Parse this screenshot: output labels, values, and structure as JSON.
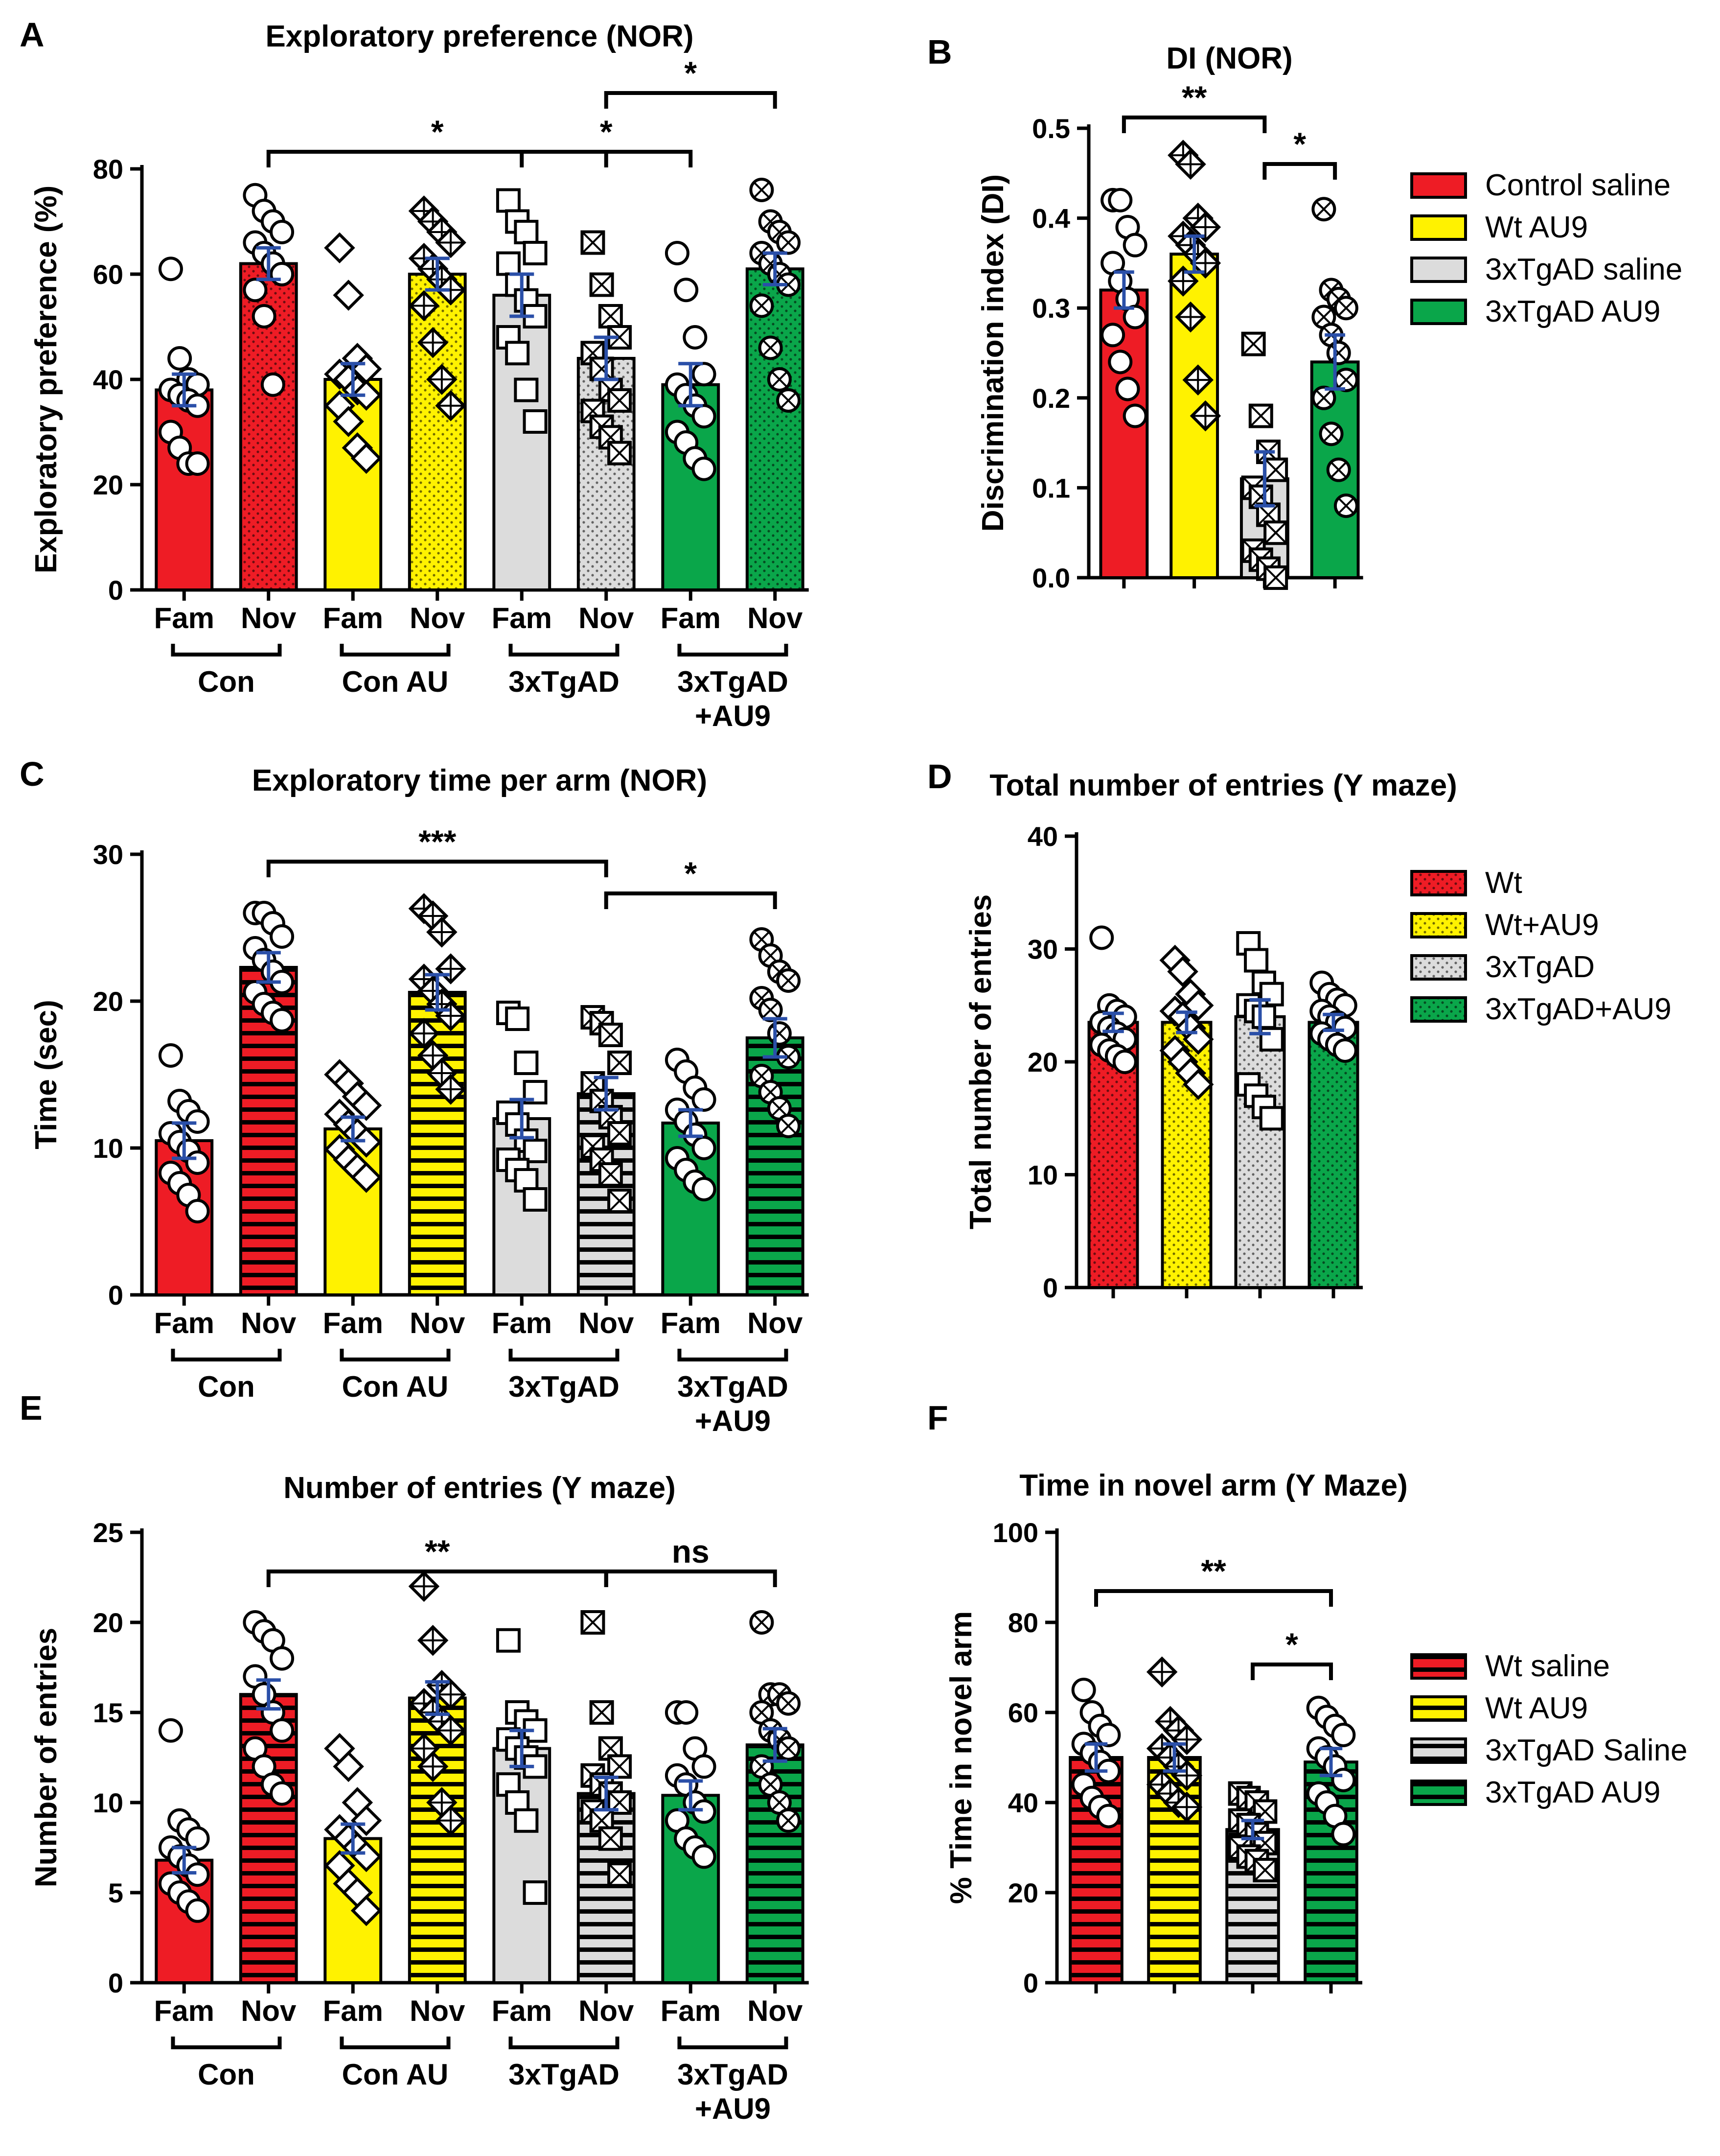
{
  "colors": {
    "red": "#ee1c25",
    "yellow": "#fff200",
    "gray": "#dcdcdc",
    "green": "#0aa64a",
    "error_bar": "#2a4fa8"
  },
  "chart_data": [
    {
      "panel": "A",
      "type": "bar",
      "title": "Exploratory preference (NOR)",
      "ylabel": "Exploratory preference (%)",
      "xlabel": "",
      "ylim": [
        0,
        80
      ],
      "yticks": [
        0,
        20,
        40,
        60,
        80
      ],
      "categories": [
        "Fam",
        "Nov",
        "Fam",
        "Nov",
        "Fam",
        "Nov",
        "Fam",
        "Nov"
      ],
      "groups": [
        {
          "label": "Con",
          "span": [
            0,
            1
          ]
        },
        {
          "label": "Con AU",
          "span": [
            2,
            3
          ]
        },
        {
          "label": "3xTgAD",
          "span": [
            4,
            5
          ]
        },
        {
          "label": "3xTgAD\n+AU9",
          "span": [
            6,
            7
          ]
        }
      ],
      "values": [
        38,
        62,
        40,
        60,
        56,
        44,
        39,
        61
      ],
      "sem": [
        3,
        3,
        3,
        3,
        4,
        4,
        4,
        3
      ],
      "bar_colors": [
        "red",
        "red",
        "yellow",
        "yellow",
        "gray",
        "gray",
        "green",
        "green"
      ],
      "patterns": [
        "solid",
        "dots",
        "solid",
        "dots",
        "solid",
        "dots",
        "solid",
        "dots"
      ],
      "markers": [
        "circle",
        "circle",
        "diamond",
        "diamond-plus",
        "square",
        "square-x",
        "circle",
        "circle-x"
      ],
      "points": [
        [
          61,
          44,
          40,
          39,
          38,
          37,
          36,
          35,
          30,
          27,
          24,
          24
        ],
        [
          75,
          72,
          70,
          68,
          66,
          64,
          62,
          60,
          57,
          52,
          39,
          60
        ],
        [
          65,
          56,
          44,
          42,
          41,
          40,
          38,
          37,
          35,
          32,
          27,
          25
        ],
        [
          72,
          70,
          68,
          66,
          63,
          61,
          59,
          57,
          54,
          47,
          40,
          35
        ],
        [
          74,
          70,
          68,
          64,
          62,
          58,
          55,
          52,
          48,
          45,
          38,
          32
        ],
        [
          66,
          58,
          52,
          48,
          45,
          42,
          38,
          36,
          34,
          31,
          29,
          26
        ],
        [
          64,
          57,
          48,
          41,
          39,
          37,
          35,
          33,
          30,
          28,
          25,
          23
        ],
        [
          76,
          70,
          68,
          66,
          64,
          62,
          60,
          58,
          54,
          46,
          40,
          36
        ]
      ],
      "annotations": [
        {
          "from": 1,
          "to": 5,
          "text": "*"
        },
        {
          "from": 4,
          "to": 6,
          "text": "*"
        },
        {
          "from": 5,
          "to": 7,
          "text": "*"
        }
      ]
    },
    {
      "panel": "B",
      "type": "bar",
      "title": "DI (NOR)",
      "ylabel": "Discrimination index (DI)",
      "xlabel": "",
      "ylim": [
        0,
        0.5
      ],
      "yticks": [
        0.0,
        0.1,
        0.2,
        0.3,
        0.4,
        0.5
      ],
      "categories": [
        "Control saline",
        "Wt AU9",
        "3xTgAD saline",
        "3xTgAD AU9"
      ],
      "values": [
        0.32,
        0.36,
        0.11,
        0.24
      ],
      "sem": [
        0.02,
        0.02,
        0.03,
        0.03
      ],
      "bar_colors": [
        "red",
        "yellow",
        "gray",
        "green"
      ],
      "patterns": [
        "solid",
        "solid",
        "solid",
        "solid"
      ],
      "markers": [
        "circle",
        "diamond-plus",
        "square-x",
        "circle-x"
      ],
      "points": [
        [
          0.42,
          0.42,
          0.39,
          0.37,
          0.35,
          0.33,
          0.31,
          0.29,
          0.27,
          0.24,
          0.21,
          0.18
        ],
        [
          0.47,
          0.46,
          0.4,
          0.39,
          0.38,
          0.37,
          0.36,
          0.35,
          0.33,
          0.29,
          0.22,
          0.18
        ],
        [
          0.26,
          0.18,
          0.14,
          0.12,
          0.1,
          0.09,
          0.07,
          0.05,
          0.03,
          0.02,
          0.01,
          0.0
        ],
        [
          0.41,
          0.32,
          0.31,
          0.3,
          0.29,
          0.27,
          0.25,
          0.22,
          0.2,
          0.16,
          0.12,
          0.08
        ]
      ],
      "annotations": [
        {
          "from": 0,
          "to": 2,
          "text": "**"
        },
        {
          "from": 2,
          "to": 3,
          "text": "*"
        }
      ],
      "legend": [
        "Control saline",
        "Wt AU9",
        "3xTgAD saline",
        "3xTgAD AU9"
      ],
      "legend_position": "right"
    },
    {
      "panel": "C",
      "type": "bar",
      "title": "Exploratory time per arm (NOR)",
      "ylabel": "Time (sec)",
      "xlabel": "",
      "ylim": [
        0,
        30
      ],
      "yticks": [
        0,
        10,
        20,
        30
      ],
      "categories": [
        "Fam",
        "Nov",
        "Fam",
        "Nov",
        "Fam",
        "Nov",
        "Fam",
        "Nov"
      ],
      "groups": [
        {
          "label": "Con",
          "span": [
            0,
            1
          ]
        },
        {
          "label": "Con AU",
          "span": [
            2,
            3
          ]
        },
        {
          "label": "3xTgAD",
          "span": [
            4,
            5
          ]
        },
        {
          "label": "3xTgAD\n+AU9",
          "span": [
            6,
            7
          ]
        }
      ],
      "values": [
        10.5,
        22.3,
        11.3,
        20.6,
        12.0,
        13.7,
        11.7,
        17.5
      ],
      "sem": [
        1.2,
        1.0,
        0.8,
        1.2,
        1.3,
        1.1,
        0.9,
        1.3
      ],
      "bar_colors": [
        "red",
        "red",
        "yellow",
        "yellow",
        "gray",
        "gray",
        "green",
        "green"
      ],
      "patterns": [
        "solid",
        "hstripes",
        "solid",
        "hstripes",
        "solid",
        "hstripes",
        "solid",
        "hstripes"
      ],
      "markers": [
        "circle",
        "circle",
        "diamond",
        "diamond-plus",
        "square",
        "square-x",
        "circle",
        "circle-x"
      ],
      "points": [
        [
          16.3,
          13.2,
          12.5,
          11.8,
          11.0,
          10.4,
          9.8,
          9.0,
          8.3,
          7.6,
          6.8,
          5.7
        ],
        [
          26.0,
          26.0,
          25.3,
          24.4,
          23.6,
          22.8,
          22.0,
          21.3,
          20.6,
          19.8,
          19.2,
          18.7
        ],
        [
          15.0,
          14.4,
          13.5,
          12.9,
          12.3,
          11.6,
          11.0,
          10.4,
          9.9,
          9.2,
          8.6,
          8.0
        ],
        [
          26.3,
          25.8,
          24.7,
          22.2,
          21.5,
          20.7,
          19.8,
          19.0,
          17.8,
          16.3,
          15.1,
          14.0
        ],
        [
          19.2,
          18.8,
          15.8,
          13.8,
          12.4,
          11.6,
          10.5,
          9.8,
          9.2,
          8.5,
          7.8,
          6.5
        ],
        [
          18.9,
          18.5,
          17.7,
          15.8,
          14.4,
          13.2,
          12.1,
          11.0,
          10.1,
          9.2,
          8.2,
          6.4
        ],
        [
          16.0,
          15.2,
          14.1,
          13.3,
          12.6,
          11.8,
          10.9,
          10.0,
          9.3,
          8.5,
          7.7,
          7.2
        ],
        [
          24.2,
          23.1,
          22.0,
          21.4,
          20.2,
          19.4,
          17.8,
          16.2,
          14.9,
          13.8,
          12.7,
          11.5
        ]
      ],
      "annotations": [
        {
          "from": 1,
          "to": 5,
          "text": "***"
        },
        {
          "from": 5,
          "to": 7,
          "text": "*"
        }
      ]
    },
    {
      "panel": "D",
      "type": "bar",
      "title": "Total number of entries (Y maze)",
      "ylabel": "Total number of entries",
      "xlabel": "",
      "ylim": [
        0,
        40
      ],
      "yticks": [
        0,
        10,
        20,
        30,
        40
      ],
      "categories": [
        "Wt",
        "Wt+AU9",
        "3xTgAD",
        "3xTgAD+AU9"
      ],
      "values": [
        23.5,
        23.5,
        24.0,
        23.5
      ],
      "sem": [
        0.8,
        0.9,
        1.5,
        0.7
      ],
      "bar_colors": [
        "red",
        "yellow",
        "gray",
        "green"
      ],
      "patterns": [
        "dots",
        "dots",
        "dots",
        "dots"
      ],
      "markers": [
        "circle",
        "diamond",
        "square",
        "circle"
      ],
      "points": [
        [
          31,
          25,
          24.5,
          24,
          23.5,
          23,
          22.5,
          22,
          21.5,
          21,
          20.5,
          20
        ],
        [
          29,
          28,
          26,
          25,
          24.5,
          24,
          23,
          22,
          21,
          20,
          19,
          18
        ],
        [
          30.5,
          29,
          27,
          26,
          25,
          24.5,
          24,
          22,
          18,
          17,
          16,
          15
        ],
        [
          27,
          26,
          25.5,
          25,
          24.5,
          24,
          23.5,
          23,
          22.5,
          22,
          21.5,
          21
        ]
      ],
      "annotations": [],
      "legend": [
        "Wt",
        "Wt+AU9",
        "3xTgAD",
        "3xTgAD+AU9"
      ],
      "legend_position": "right"
    },
    {
      "panel": "E",
      "type": "bar",
      "title": "Number of entries (Y maze)",
      "ylabel": "Number of entries",
      "xlabel": "",
      "ylim": [
        0,
        25
      ],
      "yticks": [
        0,
        5,
        10,
        15,
        20,
        25
      ],
      "categories": [
        "Fam",
        "Nov",
        "Fam",
        "Nov",
        "Fam",
        "Nov",
        "Fam",
        "Nov"
      ],
      "groups": [
        {
          "label": "Con",
          "span": [
            0,
            1
          ]
        },
        {
          "label": "Con AU",
          "span": [
            2,
            3
          ]
        },
        {
          "label": "3xTgAD",
          "span": [
            4,
            5
          ]
        },
        {
          "label": "3xTgAD\n+AU9",
          "span": [
            6,
            7
          ]
        }
      ],
      "values": [
        6.8,
        16.0,
        8.0,
        15.8,
        13.0,
        10.5,
        10.4,
        13.2
      ],
      "sem": [
        0.7,
        0.8,
        0.8,
        0.9,
        1.0,
        0.9,
        0.8,
        0.9
      ],
      "bar_colors": [
        "red",
        "red",
        "yellow",
        "yellow",
        "gray",
        "gray",
        "green",
        "green"
      ],
      "patterns": [
        "solid",
        "hstripes",
        "solid",
        "hstripes",
        "solid",
        "hstripes",
        "solid",
        "hstripes"
      ],
      "markers": [
        "circle",
        "circle",
        "diamond",
        "diamond-plus",
        "square",
        "square-x",
        "circle",
        "circle-x"
      ],
      "points": [
        [
          14,
          9,
          8.5,
          8,
          7.5,
          7,
          6.5,
          6,
          5.5,
          5,
          4.5,
          4
        ],
        [
          20,
          19.5,
          19,
          18,
          17,
          16,
          15,
          14,
          13,
          12,
          11,
          10.5
        ],
        [
          13,
          12,
          10,
          9,
          8.5,
          8,
          7.5,
          7,
          6.5,
          5.5,
          5,
          4
        ],
        [
          22,
          19,
          16.5,
          16,
          15.5,
          15,
          14.5,
          14,
          13,
          12,
          10,
          9
        ],
        [
          19,
          15,
          14.5,
          14,
          13.5,
          13,
          12.5,
          12,
          11,
          10,
          9,
          5
        ],
        [
          20,
          15,
          13,
          12,
          11.5,
          11,
          10.5,
          10,
          9.5,
          9,
          8,
          6
        ],
        [
          15,
          15,
          13,
          12,
          11.5,
          11,
          10,
          9.5,
          9,
          8,
          7.5,
          7
        ],
        [
          20,
          16,
          16,
          15.5,
          15,
          14,
          13.5,
          13,
          12,
          11,
          10,
          9
        ]
      ],
      "annotations": [
        {
          "from": 1,
          "to": 5,
          "text": "**"
        },
        {
          "from": 5,
          "to": 7,
          "text": "ns"
        }
      ]
    },
    {
      "panel": "F",
      "type": "bar",
      "title": "Time in novel arm (Y Maze)",
      "ylabel": "% Time in novel arm",
      "xlabel": "",
      "ylim": [
        0,
        100
      ],
      "yticks": [
        0,
        20,
        40,
        60,
        80,
        100
      ],
      "categories": [
        "Wt saline",
        "Wt AU9",
        "3xTgAD Saline",
        "3xTgAD AU9"
      ],
      "values": [
        50,
        50,
        34,
        49
      ],
      "sem": [
        3,
        3,
        2,
        3
      ],
      "bar_colors": [
        "red",
        "yellow",
        "gray",
        "green"
      ],
      "patterns": [
        "hstripes",
        "hstripes",
        "hstripes",
        "hstripes"
      ],
      "markers": [
        "circle",
        "diamond-plus",
        "square-x",
        "circle"
      ],
      "points": [
        [
          65,
          60,
          57,
          55,
          53,
          51,
          49,
          47,
          44,
          41,
          39,
          37
        ],
        [
          69,
          58,
          56,
          54,
          52,
          50,
          48,
          46,
          44,
          42,
          40,
          39
        ],
        [
          42,
          41,
          40,
          38,
          36,
          35,
          33,
          31,
          30,
          28,
          27,
          25
        ],
        [
          61,
          59,
          57,
          55,
          52,
          50,
          48,
          45,
          42,
          40,
          37,
          33
        ]
      ],
      "annotations": [
        {
          "from": 0,
          "to": 3,
          "text": "**"
        },
        {
          "from": 2,
          "to": 3,
          "text": "*"
        }
      ],
      "legend": [
        "Wt saline",
        "Wt AU9",
        "3xTgAD Saline",
        "3xTgAD AU9"
      ],
      "legend_position": "right"
    }
  ]
}
